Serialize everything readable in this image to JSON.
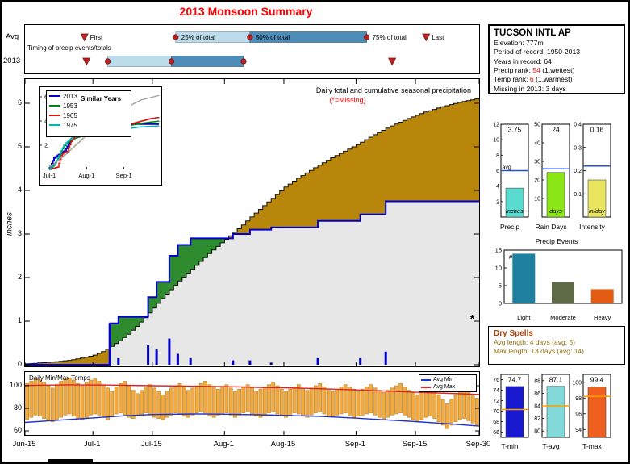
{
  "page_title": "2013 Monsoon Summary",
  "station": {
    "title": "TUCSON INTL AP",
    "lines": [
      [
        {
          "t": "Elevation: 777m",
          "c": "k"
        }
      ],
      [
        {
          "t": "Period of record: 1950-2013",
          "c": "k"
        }
      ],
      [
        {
          "t": "Years in record: 64",
          "c": "k"
        }
      ],
      [
        {
          "t": "Precip rank: ",
          "c": "k"
        },
        {
          "t": "54",
          "c": "r"
        },
        {
          "t": " (1,wettest)",
          "c": "k"
        }
      ],
      [
        {
          "t": "Temp rank: ",
          "c": "k"
        },
        {
          "t": "6",
          "c": "r"
        },
        {
          "t": " (1,warmest)",
          "c": "k"
        }
      ],
      [
        {
          "t": "Missing in 2013: 3 days",
          "c": "k"
        }
      ]
    ]
  },
  "dry_spells": {
    "title": "Dry Spells",
    "line1": "Avg length: 4 days (avg: 5)",
    "line2": "Max length: 13 days (avg: 14)"
  },
  "x_axis": {
    "days_total": 107,
    "ticks": [
      [
        0,
        "Jun-15"
      ],
      [
        16,
        "Jul-1"
      ],
      [
        30,
        "Jul-15"
      ],
      [
        47,
        "Aug-1"
      ],
      [
        61,
        "Aug-15"
      ],
      [
        78,
        "Sep-1"
      ],
      [
        92,
        "Sep-15"
      ],
      [
        107,
        "Sep-30"
      ]
    ]
  },
  "chart_data": [
    {
      "id": "timing",
      "type": "timeline",
      "title": "Timing of precip events/totals",
      "marker_color": "#bf2222",
      "bar_25_50_color": "#bcdcec",
      "bar_50_75_color": "#4e8cba",
      "labels": {
        "first": "First",
        "p25": "25% of total",
        "p50": "50% of total",
        "p75": "75% of total",
        "last": "Last"
      },
      "rows": [
        {
          "label": "Avg",
          "first": 14,
          "p25": 35.5,
          "p50": 53,
          "p75": 80.5,
          "last": 94.5,
          "show_labels": true
        },
        {
          "label": "2013",
          "first": 14.5,
          "p25": 19.5,
          "p50": 34.5,
          "p75": 51.5,
          "last": 86.5,
          "show_labels": false
        }
      ]
    },
    {
      "id": "main",
      "type": "cumulative-precip",
      "title": "Daily total and cumulative seasonal precipitation",
      "note": "(*=Missing)",
      "missing_marker": "*",
      "missing_marker_day": 106,
      "missing_marker_value": 1.05,
      "ylabel": "inches",
      "ylim": [
        0,
        6.6
      ],
      "yticks": [
        0,
        1,
        2,
        3,
        4,
        5,
        6
      ],
      "season_total": 3.75,
      "avg_cumulative": [
        [
          0,
          0.02
        ],
        [
          6,
          0.06
        ],
        [
          10,
          0.1
        ],
        [
          14,
          0.17
        ],
        [
          16,
          0.22
        ],
        [
          18,
          0.3
        ],
        [
          20,
          0.42
        ],
        [
          22,
          0.55
        ],
        [
          24,
          0.7
        ],
        [
          26,
          0.88
        ],
        [
          28,
          1.08
        ],
        [
          30,
          1.3
        ],
        [
          32,
          1.52
        ],
        [
          34,
          1.72
        ],
        [
          36,
          1.92
        ],
        [
          38,
          2.1
        ],
        [
          40,
          2.28
        ],
        [
          43,
          2.55
        ],
        [
          47,
          2.88
        ],
        [
          50,
          3.12
        ],
        [
          54,
          3.48
        ],
        [
          58,
          3.82
        ],
        [
          61,
          4.08
        ],
        [
          64,
          4.28
        ],
        [
          68,
          4.52
        ],
        [
          72,
          4.75
        ],
        [
          78,
          5.05
        ],
        [
          82,
          5.28
        ],
        [
          86,
          5.48
        ],
        [
          90,
          5.65
        ],
        [
          94,
          5.8
        ],
        [
          98,
          5.92
        ],
        [
          102,
          6.02
        ],
        [
          107,
          6.12
        ]
      ],
      "daily_events": [
        [
          20,
          0.95
        ],
        [
          22,
          0.15
        ],
        [
          29,
          0.45
        ],
        [
          31,
          0.35
        ],
        [
          34,
          0.6
        ],
        [
          36,
          0.25
        ],
        [
          39,
          0.15
        ],
        [
          49,
          0.1
        ],
        [
          53,
          0.1
        ],
        [
          58,
          0.05
        ],
        [
          69,
          0.15
        ],
        [
          79,
          0.15
        ],
        [
          85,
          0.3
        ]
      ],
      "colors": {
        "avg_fill": "#b8860b",
        "surplus_fill": "#2e8b2e",
        "under_fill": "#e7e7e7",
        "cum_line": "#0000d0",
        "bar": "#0000c8",
        "avg_edge": "#111111"
      }
    },
    {
      "id": "similar",
      "type": "line",
      "legend_title": "Similar Years",
      "x_ticks": [
        [
          16,
          "Jul-1"
        ],
        [
          47,
          "Aug-1"
        ],
        [
          78,
          "Sep-1"
        ]
      ],
      "yticks": [
        2,
        4,
        6
      ],
      "ylim": [
        0,
        6.6
      ],
      "series": [
        {
          "name": "2013",
          "color": "#0000cc",
          "in_legend": true,
          "width": 2,
          "points": [
            [
              16,
              0
            ],
            [
              20,
              0.95
            ],
            [
              22,
              1.1
            ],
            [
              29,
              1.55
            ],
            [
              31,
              1.9
            ],
            [
              34,
              2.5
            ],
            [
              36,
              2.75
            ],
            [
              39,
              2.9
            ],
            [
              49,
              3.0
            ],
            [
              53,
              3.1
            ],
            [
              58,
              3.15
            ],
            [
              69,
              3.3
            ],
            [
              79,
              3.45
            ],
            [
              85,
              3.75
            ],
            [
              107,
              3.75
            ]
          ]
        },
        {
          "name": "1953",
          "color": "#008411",
          "in_legend": true,
          "width": 1.4,
          "points": [
            [
              16,
              0
            ],
            [
              20,
              0.35
            ],
            [
              24,
              1.05
            ],
            [
              27,
              1.7
            ],
            [
              30,
              2.1
            ],
            [
              33,
              2.4
            ],
            [
              38,
              2.6
            ],
            [
              45,
              2.8
            ],
            [
              55,
              3.0
            ],
            [
              65,
              3.3
            ],
            [
              80,
              3.6
            ],
            [
              95,
              3.85
            ],
            [
              107,
              4.0
            ]
          ]
        },
        {
          "name": "1965",
          "color": "#dd0f0f",
          "in_legend": true,
          "width": 1.4,
          "points": [
            [
              16,
              0
            ],
            [
              23,
              0.2
            ],
            [
              26,
              1.15
            ],
            [
              28,
              1.4
            ],
            [
              31,
              1.5
            ],
            [
              34,
              2.3
            ],
            [
              37,
              2.7
            ],
            [
              42,
              2.9
            ],
            [
              55,
              3.1
            ],
            [
              70,
              3.35
            ],
            [
              85,
              3.8
            ],
            [
              100,
              4.2
            ],
            [
              107,
              4.3
            ]
          ]
        },
        {
          "name": "1975",
          "color": "#00b8b0",
          "in_legend": true,
          "width": 1.4,
          "points": [
            [
              16,
              0
            ],
            [
              21,
              0.55
            ],
            [
              25,
              1.35
            ],
            [
              28,
              2.0
            ],
            [
              31,
              2.3
            ],
            [
              36,
              2.7
            ],
            [
              42,
              2.9
            ],
            [
              55,
              3.05
            ],
            [
              70,
              3.2
            ],
            [
              90,
              3.5
            ],
            [
              107,
              3.6
            ]
          ]
        },
        {
          "name": "average",
          "color": "#9a9a9a",
          "in_legend": false,
          "width": 1,
          "points": [
            [
              16,
              0.22
            ],
            [
              30,
              1.3
            ],
            [
              47,
              2.88
            ],
            [
              61,
              4.08
            ],
            [
              78,
              5.05
            ],
            [
              92,
              5.75
            ],
            [
              107,
              6.12
            ]
          ]
        }
      ]
    },
    {
      "id": "temps",
      "type": "rangebar",
      "title": "Daily Min/Max Temps",
      "legend": [
        {
          "label": "Avg Min",
          "color": "#2233cc"
        },
        {
          "label": "Avg Max",
          "color": "#dd2222"
        }
      ],
      "yticks": [
        60,
        80,
        100
      ],
      "bar_color": "#f3a93f",
      "bar_edge": "#a97c1c",
      "daily_max": [
        102,
        104,
        106,
        105,
        103,
        100,
        98,
        101,
        104,
        106,
        107,
        105,
        102,
        100,
        103,
        105,
        106,
        104,
        101,
        98,
        95,
        99,
        102,
        104,
        100,
        96,
        93,
        96,
        99,
        101,
        98,
        95,
        92,
        95,
        98,
        100,
        102,
        99,
        96,
        98,
        100,
        102,
        104,
        101,
        99,
        97,
        99,
        101,
        98,
        95,
        97,
        99,
        101,
        98,
        95,
        97,
        99,
        101,
        103,
        100,
        97,
        95,
        97,
        99,
        101,
        98,
        96,
        98,
        100,
        102,
        99,
        97,
        95,
        97,
        99,
        101,
        99,
        97,
        95,
        97,
        99,
        101,
        98,
        96,
        94,
        96,
        98,
        100,
        102,
        99,
        96,
        94,
        92,
        95,
        97,
        99,
        96,
        92,
        88,
        84,
        88,
        92,
        95,
        97,
        94,
        91,
        89,
        87
      ],
      "daily_min": [
        70,
        72,
        74,
        73,
        71,
        69,
        68,
        70,
        72,
        74,
        75,
        73,
        71,
        70,
        72,
        74,
        75,
        74,
        72,
        70,
        73,
        75,
        76,
        74,
        72,
        71,
        73,
        75,
        76,
        74,
        72,
        71,
        70,
        72,
        74,
        76,
        75,
        73,
        72,
        74,
        76,
        77,
        75,
        73,
        72,
        74,
        75,
        76,
        74,
        72,
        74,
        76,
        77,
        75,
        73,
        72,
        74,
        76,
        77,
        75,
        73,
        72,
        74,
        76,
        75,
        73,
        72,
        74,
        76,
        77,
        75,
        73,
        72,
        74,
        75,
        76,
        74,
        72,
        73,
        74,
        75,
        76,
        74,
        72,
        70,
        72,
        74,
        75,
        76,
        74,
        72,
        70,
        68,
        70,
        72,
        73,
        71,
        68,
        65,
        62,
        65,
        68,
        70,
        71,
        69,
        67,
        65,
        63
      ],
      "avg_max_line": [
        [
          0,
          100.2
        ],
        [
          10,
          100.8
        ],
        [
          20,
          100.6
        ],
        [
          30,
          100.0
        ],
        [
          40,
          99.6
        ],
        [
          47,
          99.2
        ],
        [
          55,
          98.6
        ],
        [
          61,
          98.2
        ],
        [
          70,
          97.3
        ],
        [
          78,
          96.3
        ],
        [
          85,
          95.3
        ],
        [
          92,
          94.2
        ],
        [
          100,
          93.2
        ],
        [
          107,
          92.3
        ]
      ],
      "avg_min_line": [
        [
          0,
          67.5
        ],
        [
          8,
          69.5
        ],
        [
          16,
          71.5
        ],
        [
          24,
          73.5
        ],
        [
          30,
          74.5
        ],
        [
          40,
          75.0
        ],
        [
          47,
          74.8
        ],
        [
          55,
          74.3
        ],
        [
          61,
          73.8
        ],
        [
          70,
          72.8
        ],
        [
          78,
          71.3
        ],
        [
          85,
          69.8
        ],
        [
          92,
          68.2
        ],
        [
          100,
          66.2
        ],
        [
          107,
          64.2
        ]
      ]
    },
    {
      "id": "summary_minis",
      "type": "bar-mini-set",
      "avg_line_color": "#2b4fd0",
      "panels": [
        {
          "label": "Precip",
          "value": 3.75,
          "value_label": "3.75",
          "unit": "inches",
          "bar_color": "#5adbd0",
          "ylim": [
            0,
            12
          ],
          "yticks": [
            2,
            4,
            6,
            8,
            10,
            12
          ],
          "avg": 6.0,
          "avg_label": "avg"
        },
        {
          "label": "Rain Days",
          "value": 24,
          "value_label": "24",
          "unit": "days",
          "bar_color": "#8ae616",
          "ylim": [
            0,
            50
          ],
          "yticks": [
            10,
            20,
            30,
            40,
            50
          ],
          "avg": 26
        },
        {
          "label": "Intensity",
          "value": 0.16,
          "value_label": "0.16",
          "unit": "in/day",
          "bar_color": "#eae55e",
          "ylim": [
            0,
            0.4
          ],
          "yticks": [
            0.1,
            0.2,
            0.3,
            0.4
          ],
          "avg": 0.22
        }
      ]
    },
    {
      "id": "events",
      "type": "bar",
      "title": "Precip Events",
      "annotation": "# of days",
      "categories": [
        "Light",
        "Moderate",
        "Heavy"
      ],
      "values": [
        14,
        6,
        4
      ],
      "bar_colors": [
        "#20809f",
        "#5e6b46",
        "#e25d13"
      ],
      "ylim": [
        0,
        15
      ],
      "yticks": [
        0,
        5,
        10,
        15
      ]
    },
    {
      "id": "temp_minis",
      "type": "bar-mini-set",
      "avg_line_color": "#ff9d00",
      "panels": [
        {
          "label": "T-min",
          "value": 74.7,
          "value_label": "74.7",
          "bar_color": "#1818cf",
          "ylim": [
            65,
            77
          ],
          "yticks": [
            66,
            68,
            70,
            72,
            74,
            76
          ],
          "avg": 70.3
        },
        {
          "label": "T-avg",
          "value": 87.1,
          "value_label": "87.1",
          "bar_color": "#83d9d9",
          "ylim": [
            79,
            89
          ],
          "yticks": [
            80,
            82,
            84,
            86,
            88
          ],
          "avg": 84.0
        },
        {
          "label": "T-max",
          "value": 99.4,
          "value_label": "99.4",
          "bar_color": "#ef5f1d",
          "ylim": [
            93,
            101
          ],
          "yticks": [
            94,
            96,
            98,
            100
          ],
          "avg": 98.2
        }
      ]
    }
  ]
}
